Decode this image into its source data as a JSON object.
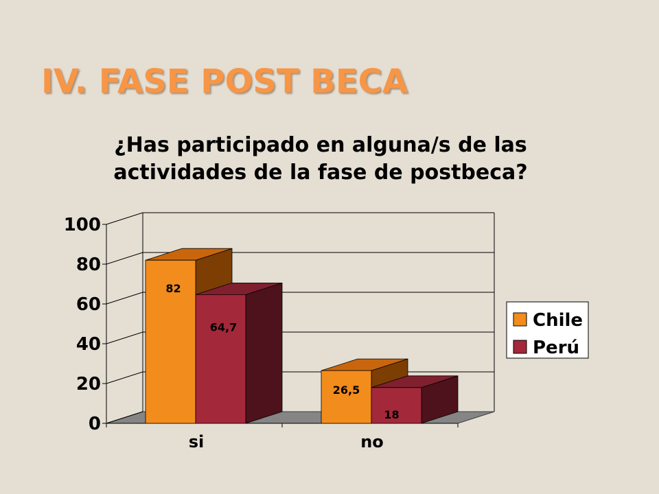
{
  "slide": {
    "title": "IV. FASE POST BECA"
  },
  "colors": {
    "background": "#E4DED3",
    "title": "#F79646",
    "floor": "#858585"
  },
  "chart_data": {
    "type": "bar",
    "three_d": true,
    "title_lines": [
      "¿Has participado en alguna/s de las",
      "actividades de la fase de postbeca?"
    ],
    "categories": [
      "si",
      "no"
    ],
    "series": [
      {
        "name": "Chile",
        "values": [
          82,
          26.5
        ],
        "labels": [
          "82",
          "26,5"
        ],
        "color": "#F28C1C",
        "top_color": "#C9660D",
        "side_color": "#7C3E03"
      },
      {
        "name": "Perú",
        "values": [
          64.7,
          18
        ],
        "labels": [
          "64,7",
          "18"
        ],
        "color": "#A3283A",
        "top_color": "#80202F",
        "side_color": "#4E121C"
      }
    ],
    "y_ticks": [
      0,
      20,
      40,
      60,
      80,
      100
    ],
    "ylim": [
      0,
      100
    ],
    "grid": true,
    "legend": "right"
  }
}
